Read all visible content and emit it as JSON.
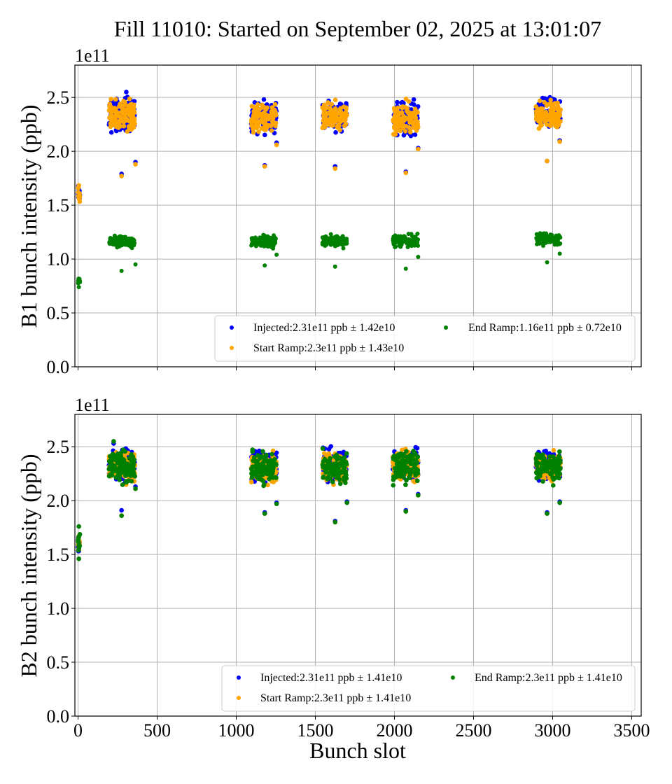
{
  "chart_data": [
    {
      "type": "scatter",
      "panel": "B1",
      "title": "Fill 11010: Started on September 02, 2025 at 13:01:07",
      "xlabel": "",
      "ylabel": "B1 bunch intensity (ppb)",
      "y_offset_label": "1e11",
      "xlim": [
        -20,
        3560
      ],
      "ylim": [
        0,
        2.8
      ],
      "xticks": [
        0,
        500,
        1000,
        1500,
        2000,
        2500,
        3000,
        3500
      ],
      "xtick_labels_visible": false,
      "yticks": [
        0.0,
        0.5,
        1.0,
        1.5,
        2.0,
        2.5
      ],
      "ytick_labels": [
        "0.0",
        "0.5",
        "1.0",
        "1.5",
        "2.0",
        "2.5"
      ],
      "grid": true,
      "legend": {
        "placement": "lower-right",
        "ncol": 2,
        "entries": [
          {
            "label": "Injected:2.31e11 ppb ± 1.42e10",
            "color": "#0000ff"
          },
          {
            "label": "Start Ramp:2.3e11 ppb ± 1.43e10",
            "color": "#ffa500"
          },
          {
            "label": "End Ramp:1.16e11 ppb ± 0.72e10",
            "color": "#008000"
          }
        ]
      },
      "series": [
        {
          "name": "Injected",
          "color": "#0000ff",
          "clusters": [
            {
              "x": [
                0,
                12
              ],
              "mean": 1.6,
              "spread": 0.12,
              "n": 12
            },
            {
              "x": [
                195,
                360
              ],
              "mean": 2.34,
              "spread": 0.22,
              "n": 120
            },
            {
              "x": [
                1095,
                1255
              ],
              "mean": 2.32,
              "spread": 0.2,
              "n": 110
            },
            {
              "x": [
                1545,
                1700
              ],
              "mean": 2.33,
              "spread": 0.18,
              "n": 100
            },
            {
              "x": [
                1990,
                2150
              ],
              "mean": 2.31,
              "spread": 0.22,
              "n": 100
            },
            {
              "x": [
                2895,
                3050
              ],
              "mean": 2.36,
              "spread": 0.18,
              "n": 100
            }
          ],
          "points": [
            [
              275,
              1.79
            ],
            [
              363,
              1.9
            ],
            [
              1180,
              1.87
            ],
            [
              1625,
              1.86
            ],
            [
              2072,
              1.81
            ],
            [
              2965,
              1.91
            ],
            [
              1255,
              2.08
            ],
            [
              2150,
              2.03
            ],
            [
              3045,
              2.1
            ],
            [
              305,
              2.55
            ]
          ]
        },
        {
          "name": "Start Ramp",
          "color": "#ffa500",
          "clusters": [
            {
              "x": [
                0,
                12
              ],
              "mean": 1.58,
              "spread": 0.12,
              "n": 12
            },
            {
              "x": [
                195,
                360
              ],
              "mean": 2.32,
              "spread": 0.22,
              "n": 120
            },
            {
              "x": [
                1095,
                1255
              ],
              "mean": 2.3,
              "spread": 0.2,
              "n": 110
            },
            {
              "x": [
                1545,
                1700
              ],
              "mean": 2.32,
              "spread": 0.18,
              "n": 100
            },
            {
              "x": [
                1990,
                2150
              ],
              "mean": 2.3,
              "spread": 0.22,
              "n": 100
            },
            {
              "x": [
                2895,
                3050
              ],
              "mean": 2.34,
              "spread": 0.18,
              "n": 100
            }
          ],
          "points": [
            [
              275,
              1.77
            ],
            [
              363,
              1.88
            ],
            [
              1180,
              1.86
            ],
            [
              1625,
              1.84
            ],
            [
              2072,
              1.8
            ],
            [
              2965,
              1.91
            ],
            [
              1255,
              2.06
            ],
            [
              2150,
              2.02
            ],
            [
              3045,
              2.09
            ]
          ]
        },
        {
          "name": "End Ramp",
          "color": "#008000",
          "clusters": [
            {
              "x": [
                0,
                12
              ],
              "mean": 0.8,
              "spread": 0.06,
              "n": 12
            },
            {
              "x": [
                195,
                360
              ],
              "mean": 1.16,
              "spread": 0.08,
              "n": 120
            },
            {
              "x": [
                1095,
                1255
              ],
              "mean": 1.16,
              "spread": 0.08,
              "n": 110
            },
            {
              "x": [
                1545,
                1700
              ],
              "mean": 1.17,
              "spread": 0.08,
              "n": 100
            },
            {
              "x": [
                1990,
                2150
              ],
              "mean": 1.17,
              "spread": 0.08,
              "n": 100
            },
            {
              "x": [
                2895,
                3050
              ],
              "mean": 1.18,
              "spread": 0.08,
              "n": 100
            }
          ],
          "points": [
            [
              275,
              0.89
            ],
            [
              363,
              0.95
            ],
            [
              1180,
              0.94
            ],
            [
              1625,
              0.93
            ],
            [
              2072,
              0.91
            ],
            [
              2965,
              0.97
            ],
            [
              1255,
              1.04
            ],
            [
              2150,
              1.02
            ],
            [
              3045,
              1.05
            ],
            [
              5,
              0.74
            ]
          ]
        }
      ]
    },
    {
      "type": "scatter",
      "panel": "B2",
      "title": "",
      "xlabel": "Bunch slot",
      "ylabel": "B2 bunch intensity (ppb)",
      "y_offset_label": "1e11",
      "xlim": [
        -20,
        3560
      ],
      "ylim": [
        0,
        2.8
      ],
      "xticks": [
        0,
        500,
        1000,
        1500,
        2000,
        2500,
        3000,
        3500
      ],
      "xtick_labels": [
        "0",
        "500",
        "1000",
        "1500",
        "2000",
        "2500",
        "3000",
        "3500"
      ],
      "yticks": [
        0.0,
        0.5,
        1.0,
        1.5,
        2.0,
        2.5
      ],
      "ytick_labels": [
        "0.0",
        "0.5",
        "1.0",
        "1.5",
        "2.0",
        "2.5"
      ],
      "grid": true,
      "legend": {
        "placement": "lower-right",
        "ncol": 2,
        "entries": [
          {
            "label": "Injected:2.31e11 ppb ± 1.41e10",
            "color": "#0000ff"
          },
          {
            "label": "Start Ramp:2.3e11 ppb ± 1.41e10",
            "color": "#ffa500"
          },
          {
            "label": "End Ramp:2.3e11 ppb ± 1.41e10",
            "color": "#008000"
          }
        ]
      },
      "series": [
        {
          "name": "Injected",
          "color": "#0000ff",
          "clusters": [
            {
              "x": [
                0,
                12
              ],
              "mean": 1.6,
              "spread": 0.12,
              "n": 12
            },
            {
              "x": [
                195,
                360
              ],
              "mean": 2.34,
              "spread": 0.2,
              "n": 120
            },
            {
              "x": [
                1095,
                1255
              ],
              "mean": 2.32,
              "spread": 0.2,
              "n": 110
            },
            {
              "x": [
                1545,
                1700
              ],
              "mean": 2.33,
              "spread": 0.2,
              "n": 100
            },
            {
              "x": [
                1990,
                2150
              ],
              "mean": 2.33,
              "spread": 0.2,
              "n": 100
            },
            {
              "x": [
                2895,
                3050
              ],
              "mean": 2.33,
              "spread": 0.18,
              "n": 100
            }
          ],
          "points": [
            [
              275,
              1.91
            ],
            [
              363,
              2.13
            ],
            [
              1180,
              1.89
            ],
            [
              1625,
              1.81
            ],
            [
              2072,
              1.91
            ],
            [
              2965,
              1.89
            ],
            [
              1255,
              1.98
            ],
            [
              1700,
              1.99
            ],
            [
              2150,
              2.06
            ],
            [
              3045,
              1.99
            ],
            [
              225,
              2.53
            ]
          ]
        },
        {
          "name": "Start Ramp",
          "color": "#ffa500",
          "clusters": [
            {
              "x": [
                0,
                12
              ],
              "mean": 1.6,
              "spread": 0.12,
              "n": 12
            },
            {
              "x": [
                195,
                360
              ],
              "mean": 2.32,
              "spread": 0.2,
              "n": 120
            },
            {
              "x": [
                1095,
                1255
              ],
              "mean": 2.3,
              "spread": 0.2,
              "n": 110
            },
            {
              "x": [
                1545,
                1700
              ],
              "mean": 2.31,
              "spread": 0.2,
              "n": 100
            },
            {
              "x": [
                1990,
                2150
              ],
              "mean": 2.31,
              "spread": 0.2,
              "n": 100
            },
            {
              "x": [
                2895,
                3050
              ],
              "mean": 2.31,
              "spread": 0.18,
              "n": 100
            }
          ],
          "points": [
            [
              275,
              1.86
            ],
            [
              363,
              2.11
            ],
            [
              1180,
              1.88
            ],
            [
              1625,
              1.8
            ],
            [
              2072,
              1.9
            ],
            [
              2965,
              1.88
            ]
          ]
        },
        {
          "name": "End Ramp",
          "color": "#008000",
          "clusters": [
            {
              "x": [
                0,
                12
              ],
              "mean": 1.61,
              "spread": 0.13,
              "n": 12
            },
            {
              "x": [
                195,
                360
              ],
              "mean": 2.32,
              "spread": 0.2,
              "n": 120
            },
            {
              "x": [
                1095,
                1255
              ],
              "mean": 2.3,
              "spread": 0.2,
              "n": 110
            },
            {
              "x": [
                1545,
                1700
              ],
              "mean": 2.31,
              "spread": 0.2,
              "n": 100
            },
            {
              "x": [
                1990,
                2150
              ],
              "mean": 2.31,
              "spread": 0.2,
              "n": 100
            },
            {
              "x": [
                2895,
                3050
              ],
              "mean": 2.31,
              "spread": 0.18,
              "n": 100
            }
          ],
          "points": [
            [
              275,
              1.86
            ],
            [
              363,
              2.11
            ],
            [
              1180,
              1.88
            ],
            [
              1625,
              1.8
            ],
            [
              2072,
              1.9
            ],
            [
              2965,
              1.88
            ],
            [
              1255,
              1.97
            ],
            [
              1700,
              1.98
            ],
            [
              2150,
              2.05
            ],
            [
              3045,
              1.98
            ],
            [
              225,
              2.55
            ],
            [
              5,
              1.46
            ],
            [
              5,
              1.76
            ]
          ]
        }
      ]
    }
  ]
}
